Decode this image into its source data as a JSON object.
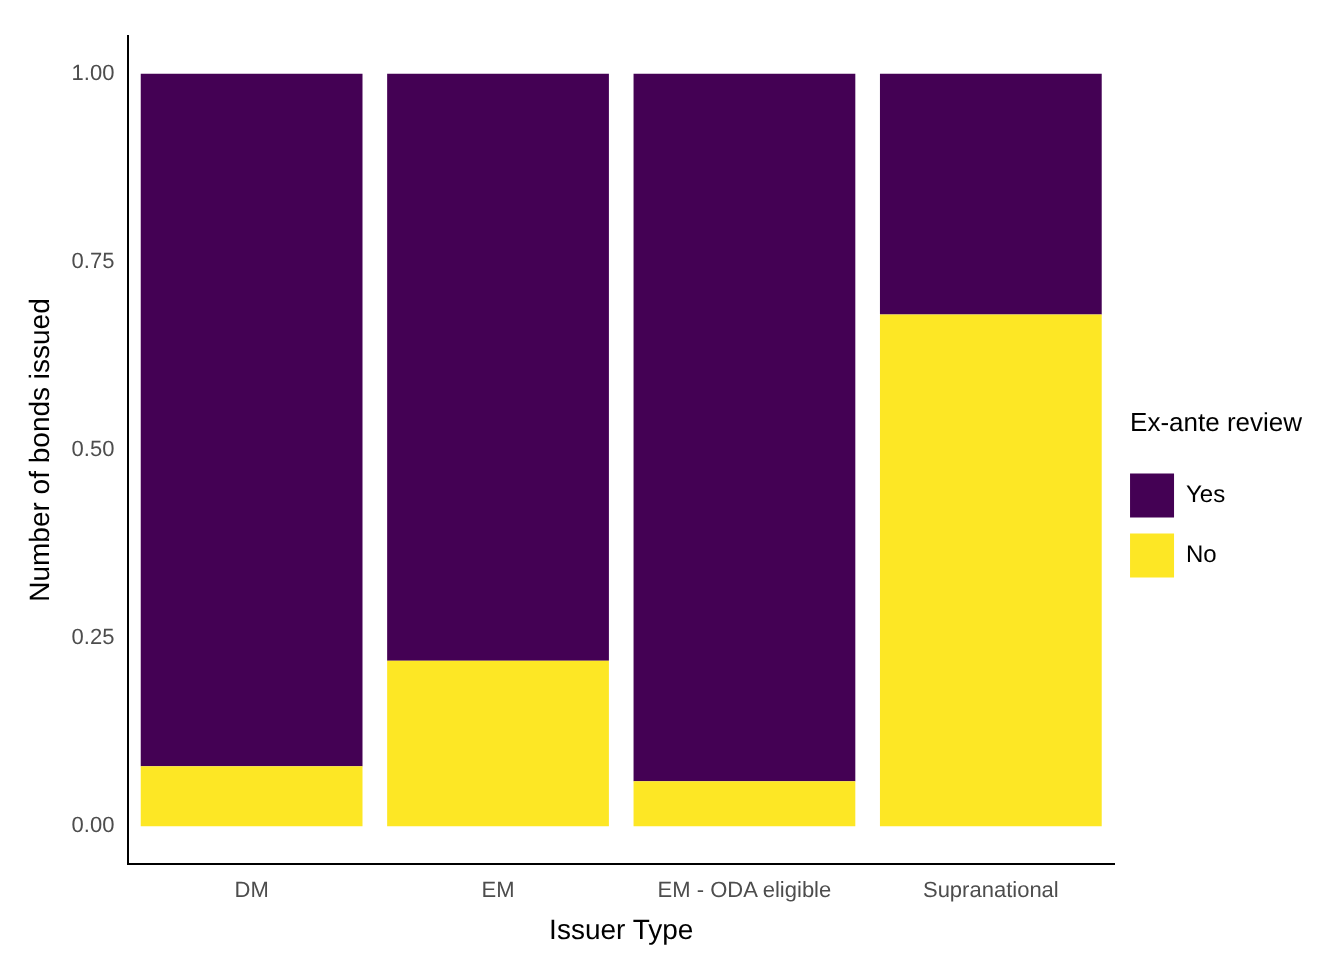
{
  "chart_data": {
    "type": "bar",
    "stacked": true,
    "xlabel": "Issuer Type",
    "ylabel": "Number of bonds issued",
    "legend_title": "Ex-ante review",
    "legend": "right",
    "grid": false,
    "categories": [
      "DM",
      "EM",
      "EM - ODA eligible",
      "Supranational"
    ],
    "series": [
      {
        "name": "No",
        "color": "#fde725",
        "values": [
          0.08,
          0.22,
          0.06,
          0.68
        ]
      },
      {
        "name": "Yes",
        "color": "#440154",
        "values": [
          0.92,
          0.78,
          0.94,
          0.32
        ]
      }
    ],
    "ylim": [
      -0.05,
      1.05
    ],
    "yticks": [
      {
        "value": 0,
        "label": "0.00"
      },
      {
        "value": 0.25,
        "label": "0.25"
      },
      {
        "value": 0.5,
        "label": "0.50"
      },
      {
        "value": 0.75,
        "label": "0.75"
      },
      {
        "value": 1,
        "label": "1.00"
      }
    ]
  }
}
